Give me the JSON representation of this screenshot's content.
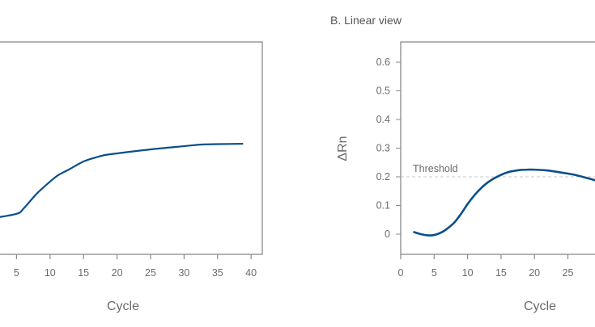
{
  "chart_data": [
    {
      "type": "line",
      "title": "",
      "xlabel": "Cycle",
      "ylabel": "",
      "xlim": [
        0,
        41
      ],
      "ylim": [
        0.001,
        10
      ],
      "y_scale": "log",
      "grid": false,
      "x_ticks": [
        "5",
        "10",
        "15",
        "20",
        "25",
        "30",
        "35",
        "40"
      ],
      "line_color": "#0b4f8a",
      "series": [
        {
          "x": [
            1,
            5,
            6.1,
            8,
            10,
            11.2,
            12.8,
            15,
            16.8,
            18.2,
            20,
            25,
            30,
            32.6,
            35,
            38.7
          ],
          "y": [
            0.0047,
            0.0058,
            0.0074,
            0.0138,
            0.0234,
            0.0309,
            0.0395,
            0.0561,
            0.0668,
            0.0743,
            0.0796,
            0.0949,
            0.109,
            0.117,
            0.119,
            0.121
          ]
        }
      ]
    },
    {
      "type": "line",
      "title": "B. Linear view",
      "xlabel": "Cycle",
      "ylabel": "ΔRn",
      "xlim": [
        0,
        30
      ],
      "ylim": [
        -0.07,
        0.66
      ],
      "y_scale": "linear",
      "grid": false,
      "x_ticks": [
        "0",
        "5",
        "10",
        "15",
        "20",
        "25"
      ],
      "y_ticks": [
        "0",
        "0.1",
        "0.2",
        "0.3",
        "0.4",
        "0.5",
        "0.6"
      ],
      "threshold": {
        "label": "Threshold",
        "value": 0.2,
        "color": "#c8c8c8"
      },
      "line_color": "#0b4f8a",
      "series": [
        {
          "x": [
            2,
            3,
            4,
            5,
            6,
            7,
            8,
            9,
            10,
            11,
            12,
            13,
            14,
            15,
            16,
            17,
            18,
            19,
            20,
            22,
            24,
            26,
            28,
            29.5
          ],
          "y": [
            0.007,
            0.0,
            -0.004,
            -0.003,
            0.005,
            0.02,
            0.04,
            0.07,
            0.105,
            0.135,
            0.16,
            0.18,
            0.195,
            0.207,
            0.216,
            0.221,
            0.224,
            0.225,
            0.225,
            0.222,
            0.215,
            0.207,
            0.195,
            0.185
          ]
        }
      ]
    }
  ]
}
